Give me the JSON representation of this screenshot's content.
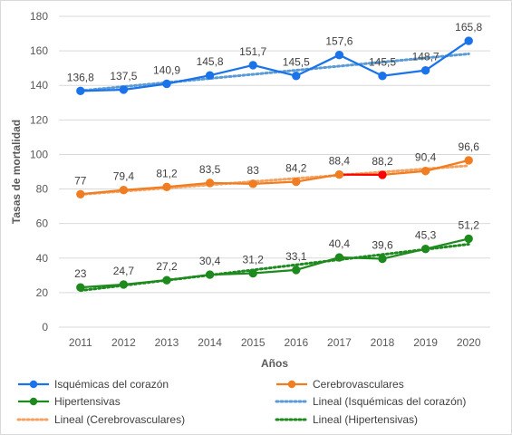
{
  "chart_data": {
    "type": "line",
    "title": "",
    "xlabel": "Años",
    "ylabel": "Tasas de mortalidad",
    "ylim": [
      0,
      180
    ],
    "y_ticks": [
      0,
      20,
      40,
      60,
      80,
      100,
      120,
      140,
      160,
      180
    ],
    "grid": true,
    "legend_position": "bottom",
    "categories": [
      "2011",
      "2012",
      "2013",
      "2014",
      "2015",
      "2016",
      "2017",
      "2018",
      "2019",
      "2020"
    ],
    "series": [
      {
        "name": "Isquémicas del corazón",
        "color": "#1a73e8",
        "values": [
          136.8,
          137.5,
          140.9,
          145.8,
          151.7,
          145.5,
          157.6,
          145.5,
          148.7,
          165.8
        ],
        "labels": [
          "136,8",
          "137,5",
          "140,9",
          "145,8",
          "151,7",
          "145,5",
          "157,6",
          "145,5",
          "148,7",
          "165,8"
        ]
      },
      {
        "name": "Cerebrovasculares",
        "color": "#f07d22",
        "values": [
          77,
          79.4,
          81.2,
          83.5,
          83,
          84.2,
          88.4,
          88.2,
          90.4,
          96.6
        ],
        "labels": [
          "77",
          "79,4",
          "81,2",
          "83,5",
          "83",
          "84,2",
          "88,4",
          "88,2",
          "90,4",
          "96,6"
        ]
      },
      {
        "name": "Hipertensivas",
        "color": "#1e8a1e",
        "values": [
          23,
          24.7,
          27.2,
          30.4,
          31.2,
          33.1,
          40.4,
          39.6,
          45.3,
          51.2
        ],
        "labels": [
          "23",
          "24,7",
          "27,2",
          "30,4",
          "31,2",
          "33,1",
          "40,4",
          "39,6",
          "45,3",
          "51,2"
        ]
      }
    ],
    "trendlines": [
      {
        "name": "Lineal (Isquémicas del corazón)",
        "color": "#5b9bd5",
        "of": 0
      },
      {
        "name": "Lineal (Cerebrovasculares)",
        "color": "#f4a261",
        "of": 1
      },
      {
        "name": "Lineal (Hipertensivas)",
        "color": "#1e8a1e",
        "of": 2
      }
    ],
    "highlight": {
      "series": 1,
      "segment_from": 6,
      "segment_to": 7,
      "color": "#ff0000"
    }
  }
}
